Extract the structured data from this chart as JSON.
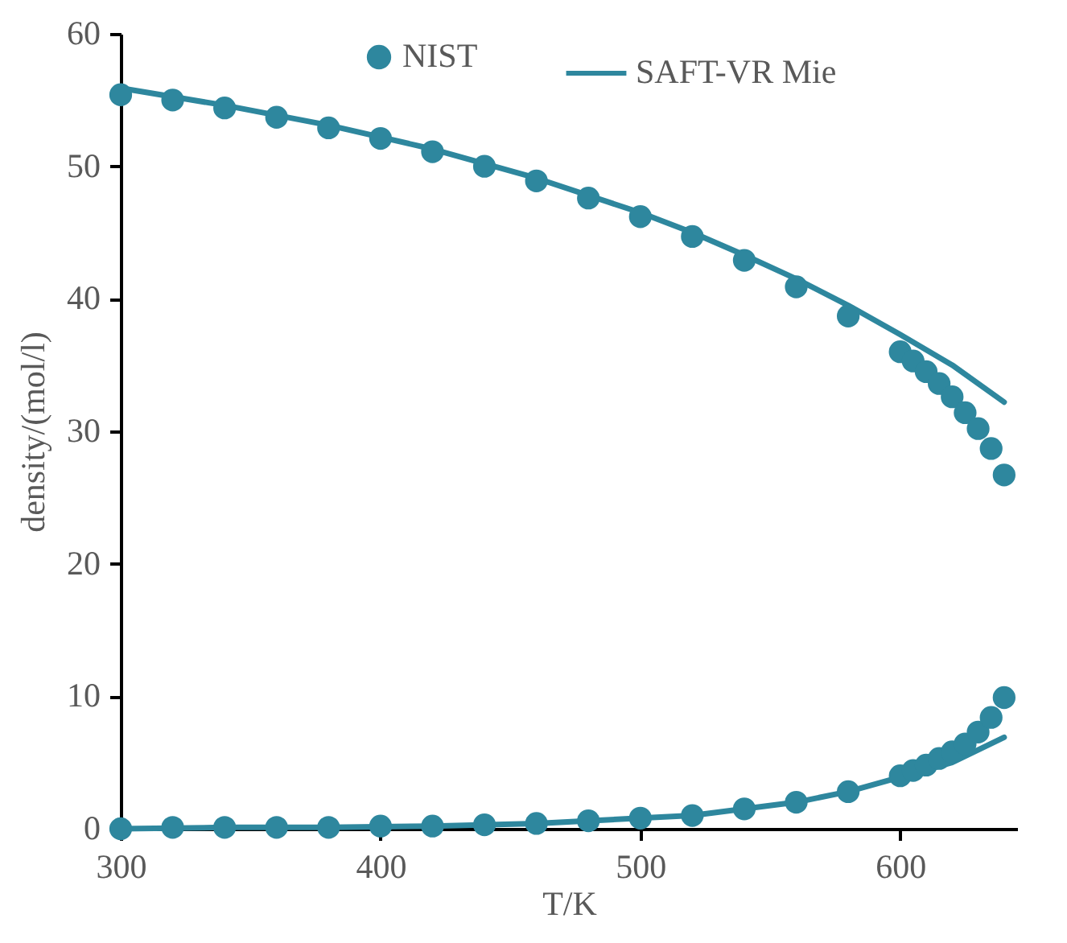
{
  "chart_data": {
    "type": "scatter",
    "xlabel": "T/K",
    "ylabel": "density/(mol/l)",
    "xlim": [
      300,
      645
    ],
    "ylim": [
      0,
      60
    ],
    "xticks": [
      300,
      400,
      500,
      600
    ],
    "yticks": [
      0,
      10,
      20,
      30,
      40,
      50,
      60
    ],
    "legend": "top",
    "grid": false,
    "series": [
      {
        "name": "NIST",
        "color": "#2e879e",
        "marker": "circle",
        "x": [
          300,
          320,
          340,
          360,
          380,
          400,
          420,
          440,
          460,
          480,
          500,
          520,
          540,
          560,
          580,
          600,
          605,
          610,
          615,
          620,
          625,
          630,
          635,
          640
        ],
        "values": [
          55.4,
          55.0,
          54.4,
          53.7,
          52.9,
          52.1,
          51.1,
          50.0,
          48.9,
          47.6,
          46.2,
          44.7,
          42.9,
          40.9,
          38.7,
          36.0,
          35.3,
          34.5,
          33.6,
          32.6,
          31.4,
          30.2,
          28.7,
          26.7
        ]
      },
      {
        "color": "#2e879e",
        "marker": "circle",
        "x": [
          300,
          320,
          340,
          360,
          380,
          400,
          420,
          440,
          460,
          480,
          500,
          520,
          540,
          560,
          580,
          600,
          605,
          610,
          615,
          620,
          625,
          630,
          635,
          640
        ],
        "values": [
          0.0,
          0.1,
          0.1,
          0.1,
          0.1,
          0.2,
          0.2,
          0.3,
          0.4,
          0.6,
          0.8,
          1.0,
          1.5,
          2.0,
          2.8,
          4.0,
          4.4,
          4.8,
          5.3,
          5.8,
          6.4,
          7.3,
          8.4,
          9.9
        ]
      },
      {
        "type": "line",
        "name": "SAFT-VR Mie",
        "color": "#2e879e",
        "line_style": "solid",
        "x": [
          300,
          340,
          380,
          420,
          460,
          500,
          520,
          540,
          560,
          580,
          600,
          620,
          640
        ],
        "values": [
          55.9,
          54.6,
          53.1,
          51.3,
          49.1,
          46.5,
          45.0,
          43.3,
          41.5,
          39.5,
          37.3,
          35.0,
          32.2
        ]
      },
      {
        "type": "line",
        "color": "#2e879e",
        "line_style": "solid",
        "x": [
          300,
          340,
          380,
          420,
          460,
          500,
          520,
          540,
          560,
          580,
          600,
          620,
          640
        ],
        "values": [
          0.0,
          0.1,
          0.1,
          0.2,
          0.4,
          0.8,
          1.0,
          1.5,
          2.0,
          2.8,
          3.9,
          5.0,
          6.9
        ]
      }
    ]
  }
}
